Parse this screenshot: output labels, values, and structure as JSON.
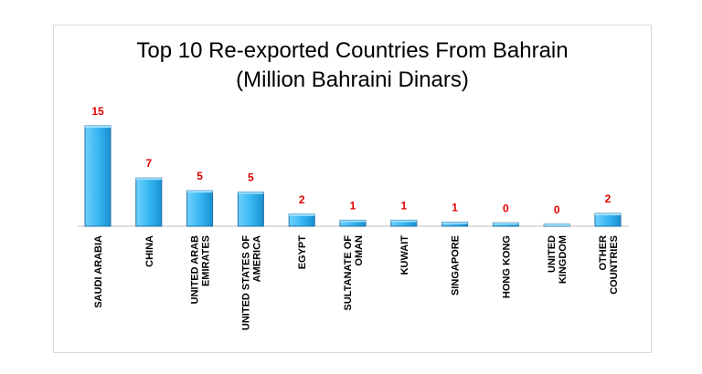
{
  "chart_data": {
    "type": "bar",
    "title": "Top 10 Re-exported Countries From Bahrain",
    "subtitle": "(Million Bahraini Dinars)",
    "categories": [
      [
        "SAUDI ARABIA"
      ],
      [
        "CHINA"
      ],
      [
        "UNITED ARAB",
        "EMIRATES"
      ],
      [
        "UNITED STATES OF",
        "AMERICA"
      ],
      [
        "EGYPT"
      ],
      [
        "SULTANATE OF",
        "OMAN"
      ],
      [
        "KUWAIT"
      ],
      [
        "SINGAPORE"
      ],
      [
        "HONG KONG"
      ],
      [
        "UNITED",
        "KINGDOM"
      ],
      [
        "OTHER",
        "COUNTRIES"
      ]
    ],
    "values": [
      15,
      7,
      5,
      5,
      2,
      1,
      1,
      1,
      0,
      0,
      2
    ],
    "bar_heights": [
      15,
      7.2,
      5.3,
      5.1,
      1.8,
      0.9,
      0.9,
      0.6,
      0.5,
      0.3,
      1.9
    ],
    "ylim": [
      0,
      16
    ],
    "bar_color": "#33b5f0",
    "bar_color_dark": "#1f6fa8",
    "value_label_color": "#e00000",
    "grid": false,
    "legend": false
  }
}
